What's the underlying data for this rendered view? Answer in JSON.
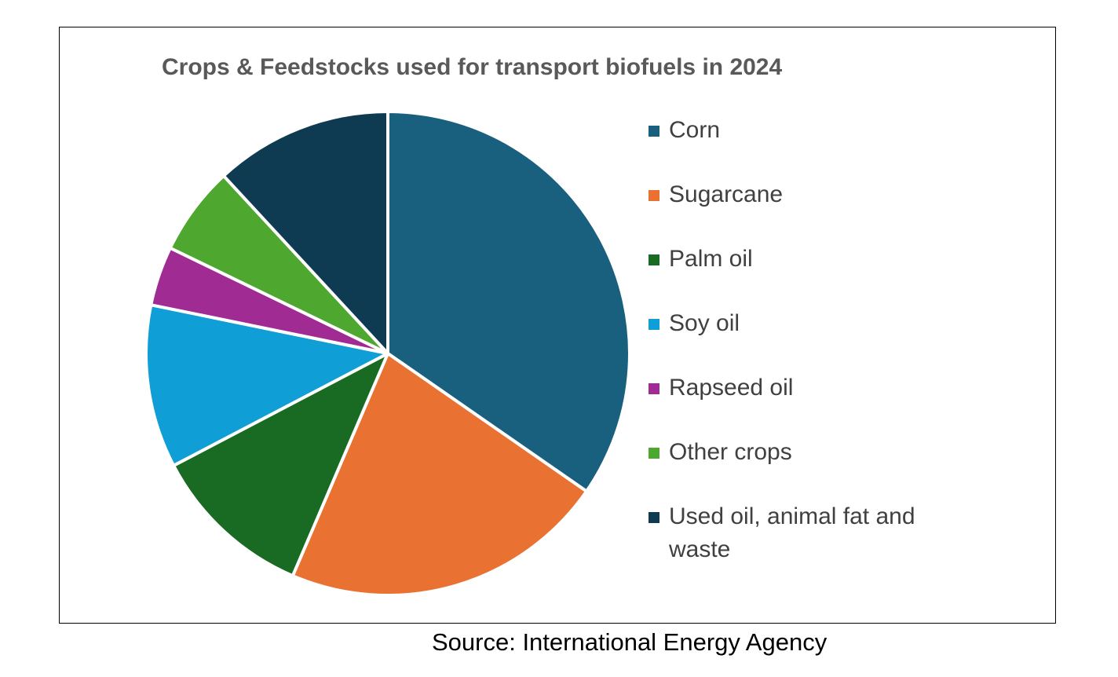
{
  "chart_data": {
    "type": "pie",
    "title": "Crops & Feedstocks used for transport biofuels in 2024",
    "categories": [
      "Corn",
      "Sugarcane",
      "Palm oil",
      "Soy oil",
      "Rapseed oil",
      "Other crops",
      "Used oil, animal fat and waste"
    ],
    "values": [
      35,
      22,
      11,
      11,
      4,
      6,
      12
    ],
    "colors": [
      "#19607F",
      "#E97132",
      "#196B24",
      "#0F9ED5",
      "#A02B93",
      "#4EA72E",
      "#0E3A52"
    ],
    "legend_position": "right",
    "source": "Source: International Energy Agency"
  }
}
